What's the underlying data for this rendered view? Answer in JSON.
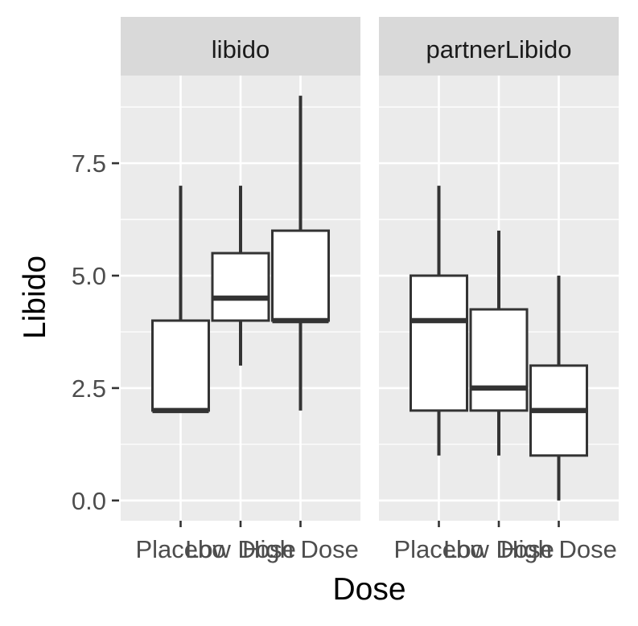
{
  "chart_data": {
    "type": "boxplot",
    "xlabel": "Dose",
    "ylabel": "Libido",
    "categories": [
      "Placebo",
      "Low Dose",
      "High Dose"
    ],
    "y_ticks": [
      0.0,
      2.5,
      5.0,
      7.5
    ],
    "y_tick_labels": [
      "0.0",
      "2.5",
      "5.0",
      "7.5"
    ],
    "ylim": [
      -0.45,
      9.45
    ],
    "grid": true,
    "colors": {
      "panel": "#ebebeb",
      "strip": "#d9d9d9",
      "grid": "#ffffff",
      "box": "#333333",
      "box_fill": "#ffffff"
    },
    "panels": [
      {
        "name": "libido",
        "boxes": [
          {
            "category": "Placebo",
            "min": 2,
            "q1": 2,
            "median": 2,
            "q3": 4,
            "max": 7
          },
          {
            "category": "Low Dose",
            "min": 3,
            "q1": 4,
            "median": 4.5,
            "q3": 5.5,
            "max": 7
          },
          {
            "category": "High Dose",
            "min": 2,
            "q1": 4,
            "median": 4,
            "q3": 6,
            "max": 9
          }
        ]
      },
      {
        "name": "partnerLibido",
        "boxes": [
          {
            "category": "Placebo",
            "min": 1,
            "q1": 2,
            "median": 4,
            "q3": 5,
            "max": 7
          },
          {
            "category": "Low Dose",
            "min": 1,
            "q1": 2,
            "median": 2.5,
            "q3": 4.25,
            "max": 6
          },
          {
            "category": "High Dose",
            "min": 0,
            "q1": 1,
            "median": 2,
            "q3": 3,
            "max": 5
          }
        ]
      }
    ]
  }
}
